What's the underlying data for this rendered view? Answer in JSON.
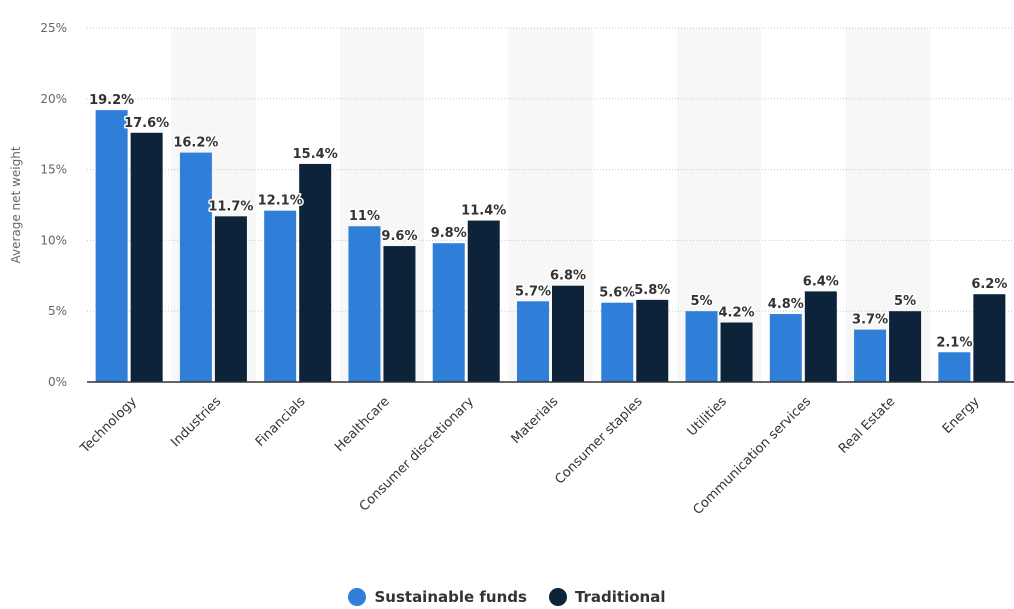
{
  "chart_data": {
    "type": "bar",
    "title": "",
    "xlabel": "",
    "ylabel": "Average net weight",
    "ylim": [
      0,
      25
    ],
    "yticks": [
      "0%",
      "5%",
      "10%",
      "15%",
      "20%",
      "25%"
    ],
    "grid": true,
    "legend_position": "bottom-center",
    "categories": [
      "Technology",
      "Industries",
      "Financials",
      "Healthcare",
      "Consumer discretionary",
      "Materials",
      "Consumer staples",
      "Utilities",
      "Communication services",
      "Real Estate",
      "Energy"
    ],
    "series": [
      {
        "name": "Sustainable funds",
        "color": "#2f7ed8",
        "values": [
          19.2,
          16.2,
          12.1,
          11,
          9.8,
          5.7,
          5.6,
          5,
          4.8,
          3.7,
          2.1
        ],
        "labels": [
          "19.2%",
          "16.2%",
          "12.1%",
          "11%",
          "9.8%",
          "5.7%",
          "5.6%",
          "5%",
          "4.8%",
          "3.7%",
          "2.1%"
        ]
      },
      {
        "name": "Traditional",
        "color": "#0d233a",
        "values": [
          17.6,
          11.7,
          15.4,
          9.6,
          11.4,
          6.8,
          5.8,
          4.2,
          6.4,
          5,
          6.2
        ],
        "labels": [
          "17.6%",
          "11.7%",
          "15.4%",
          "9.6%",
          "11.4%",
          "6.8%",
          "5.8%",
          "4.2%",
          "6.4%",
          "5%",
          "6.2%"
        ]
      }
    ]
  }
}
